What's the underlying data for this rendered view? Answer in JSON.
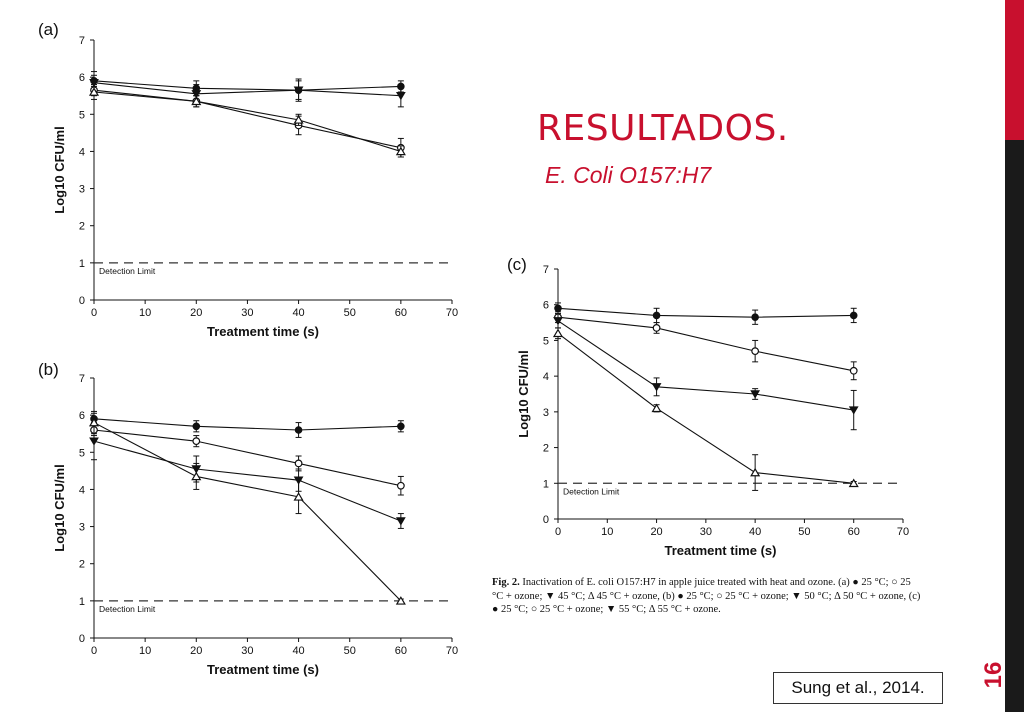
{
  "slide": {
    "title": "RESULTADOS.",
    "subtitle": "E. Coli O157:H7",
    "citation": "Sung et al., 2014.",
    "page_number": "16",
    "colors": {
      "accent": "#c8102e",
      "sidebar_dark": "#1a1a1a"
    }
  },
  "caption": {
    "label": "Fig. 2.",
    "text": "Inactivation of E. coli O157:H7 in apple juice treated with heat and ozone. (a) ● 25 °C; ○ 25 °C + ozone; ▼ 45 °C; Δ 45 °C + ozone, (b) ● 25 °C; ○ 25 °C + ozone; ▼ 50 °C; Δ 50 °C + ozone, (c) ● 25 °C; ○ 25 °C + ozone; ▼ 55 °C; Δ 55 °C + ozone."
  },
  "chart_data": [
    {
      "type": "line",
      "panel": "(a)",
      "xlabel": "Treatment time (s)",
      "ylabel": "Log10 CFU/ml",
      "xlim": [
        0,
        70
      ],
      "ylim": [
        0,
        7
      ],
      "xticks": [
        0,
        10,
        20,
        30,
        40,
        50,
        60,
        70
      ],
      "yticks": [
        0,
        1,
        2,
        3,
        4,
        5,
        6,
        7
      ],
      "x": [
        0,
        20,
        40,
        60
      ],
      "detection_limit": {
        "value": 1,
        "label": "Detection Limit"
      },
      "series": [
        {
          "marker": "filled-circle",
          "values": [
            5.9,
            5.7,
            5.65,
            5.75
          ],
          "errors": [
            0.15,
            0.2,
            0.25,
            0.15
          ]
        },
        {
          "marker": "open-circle",
          "values": [
            5.65,
            5.35,
            4.7,
            4.1
          ],
          "errors": [
            0.15,
            0.15,
            0.25,
            0.25
          ]
        },
        {
          "marker": "filled-triangle-down",
          "values": [
            5.85,
            5.55,
            5.65,
            5.5
          ],
          "errors": [
            0.3,
            0.25,
            0.3,
            0.3
          ]
        },
        {
          "marker": "open-triangle-up",
          "values": [
            5.6,
            5.35,
            4.85,
            4.0
          ],
          "errors": [
            0.2,
            0.15,
            0.15,
            0.15
          ]
        }
      ]
    },
    {
      "type": "line",
      "panel": "(b)",
      "xlabel": "Treatment time (s)",
      "ylabel": "Log10 CFU/ml",
      "xlim": [
        0,
        70
      ],
      "ylim": [
        0,
        7
      ],
      "xticks": [
        0,
        10,
        20,
        30,
        40,
        50,
        60,
        70
      ],
      "yticks": [
        0,
        1,
        2,
        3,
        4,
        5,
        6,
        7
      ],
      "x": [
        0,
        20,
        40,
        60
      ],
      "detection_limit": {
        "value": 1,
        "label": "Detection Limit"
      },
      "series": [
        {
          "marker": "filled-circle",
          "values": [
            5.9,
            5.7,
            5.6,
            5.7
          ],
          "errors": [
            0.15,
            0.15,
            0.2,
            0.15
          ]
        },
        {
          "marker": "open-circle",
          "values": [
            5.6,
            5.3,
            4.7,
            4.1
          ],
          "errors": [
            0.15,
            0.15,
            0.2,
            0.25
          ]
        },
        {
          "marker": "filled-triangle-down",
          "values": [
            5.3,
            4.55,
            4.25,
            3.15
          ],
          "errors": [
            0.5,
            0.35,
            0.3,
            0.2
          ]
        },
        {
          "marker": "open-triangle-up",
          "values": [
            5.8,
            4.35,
            3.8,
            1.0
          ],
          "errors": [
            0.3,
            0.35,
            0.45,
            0.05
          ]
        }
      ]
    },
    {
      "type": "line",
      "panel": "(c)",
      "xlabel": "Treatment time (s)",
      "ylabel": "Log10 CFU/ml",
      "xlim": [
        0,
        70
      ],
      "ylim": [
        0,
        7
      ],
      "xticks": [
        0,
        10,
        20,
        30,
        40,
        50,
        60,
        70
      ],
      "yticks": [
        0,
        1,
        2,
        3,
        4,
        5,
        6,
        7
      ],
      "x": [
        0,
        20,
        40,
        60
      ],
      "detection_limit": {
        "value": 1,
        "label": "Detection Limit"
      },
      "series": [
        {
          "marker": "filled-circle",
          "values": [
            5.9,
            5.7,
            5.65,
            5.7
          ],
          "errors": [
            0.15,
            0.2,
            0.2,
            0.2
          ]
        },
        {
          "marker": "open-circle",
          "values": [
            5.65,
            5.35,
            4.7,
            4.15
          ],
          "errors": [
            0.15,
            0.15,
            0.3,
            0.25
          ]
        },
        {
          "marker": "filled-triangle-down",
          "values": [
            5.55,
            3.7,
            3.5,
            3.05
          ],
          "errors": [
            0.2,
            0.25,
            0.15,
            0.55
          ]
        },
        {
          "marker": "open-triangle-up",
          "values": [
            5.2,
            3.1,
            1.3,
            1.0
          ],
          "errors": [
            0.15,
            0.1,
            0.5,
            0.05
          ]
        }
      ]
    }
  ]
}
